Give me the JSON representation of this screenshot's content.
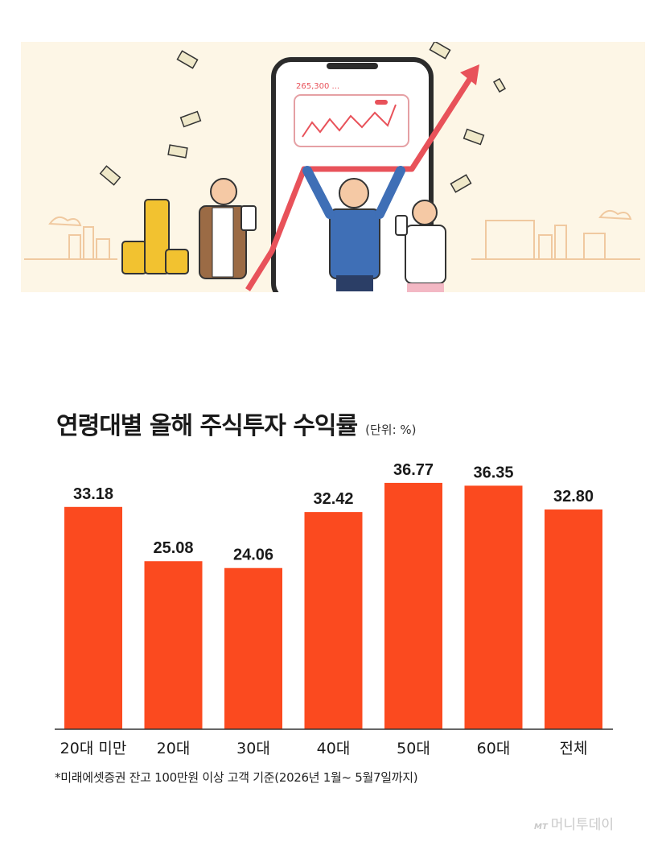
{
  "illustration": {
    "price_text": "265,300 ...",
    "colors": {
      "background": "#fdf6e6",
      "trend_arrow": "#e8525a",
      "coins": "#f2c230",
      "phone_frame": "#2b2b2b",
      "jacket_blue": "#3f6fb6"
    }
  },
  "title": "연령대별 올해 주식투자 수익률",
  "unit": "(단위: %)",
  "footnote": "*미래에셋증권 잔고 100만원 이상 고객 기준(2026년 1월~ 5월7일까지)",
  "watermark": {
    "logo": "MT",
    "text": "머니투데이"
  },
  "colors": {
    "bar": "#fb4a1f",
    "baseline": "#333333",
    "text": "#1a1a1a"
  },
  "chart_data": {
    "type": "bar",
    "categories": [
      "20대 미만",
      "20대",
      "30대",
      "40대",
      "50대",
      "60대",
      "전체"
    ],
    "values": [
      33.18,
      25.08,
      24.06,
      32.42,
      36.77,
      36.35,
      32.8
    ],
    "value_labels": [
      "33.18",
      "25.08",
      "24.06",
      "32.42",
      "36.77",
      "36.35",
      "32.80"
    ],
    "title": "연령대별 올해 주식투자 수익률",
    "unit": "(단위: %)",
    "xlabel": "",
    "ylabel": "",
    "ylim": [
      0,
      37
    ],
    "grid": false,
    "legend": "none"
  }
}
